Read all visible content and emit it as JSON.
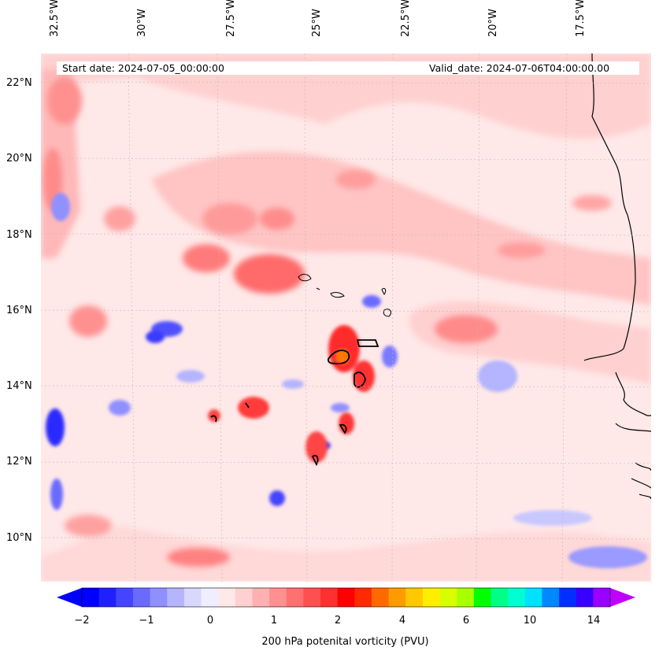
{
  "annotations": {
    "start": "Start date: 2024-07-05_00:00:00",
    "valid": "Valid_date: 2024-07-06T04:00:00.00"
  },
  "axes": {
    "lon_labels": [
      "32.5°W",
      "30°W",
      "27.5°W",
      "25°W",
      "22.5°W",
      "20°W",
      "17.5°W"
    ],
    "lat_labels": [
      "22°N",
      "20°N",
      "18°N",
      "16°N",
      "14°N",
      "12°N",
      "10°N"
    ]
  },
  "colorbar": {
    "label": "200 hPa potenital vorticity (PVU)",
    "ticks": [
      "−2",
      "−1",
      "0",
      "1",
      "2",
      "4",
      "6",
      "10",
      "14"
    ],
    "colors": [
      "#0000ff",
      "#2020ff",
      "#4545ff",
      "#6a6aff",
      "#8f8fff",
      "#b4b4ff",
      "#d8d8ff",
      "#eeeeff",
      "#ffe8e8",
      "#ffd0d0",
      "#ffb0b0",
      "#ff9090",
      "#ff7070",
      "#ff5050",
      "#ff3030",
      "#ff0000",
      "#ff2a00",
      "#ff6a00",
      "#ff9a00",
      "#ffc800",
      "#ffee00",
      "#d8ff00",
      "#a8ff00",
      "#00ff00",
      "#00ff88",
      "#00ffd0",
      "#00e0ff",
      "#0088ff",
      "#0030ff",
      "#3a00ff",
      "#9a00ff"
    ],
    "extend_left_color": "#0000ff",
    "extend_right_color": "#c000ff"
  }
}
